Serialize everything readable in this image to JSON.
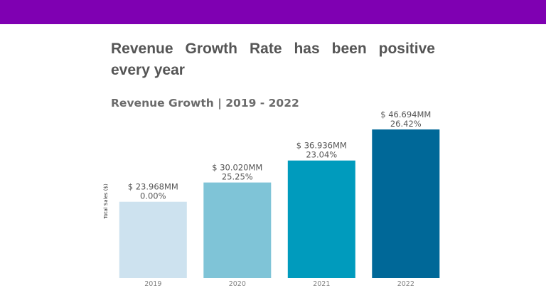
{
  "colors": {
    "top_bar": "#7f00b2",
    "text_dark": "#555555",
    "text_muted": "#808080",
    "bar_colors": [
      "#cde2ef",
      "#7fc4d7",
      "#009bbd",
      "#006898"
    ]
  },
  "headline": "Revenue Growth Rate has been positive every year",
  "chart_data": {
    "type": "bar",
    "title": "Revenue Growth | 2019 - 2022",
    "xlabel": "",
    "ylabel": "Total Sales ($)",
    "categories": [
      "2019",
      "2020",
      "2021",
      "2022"
    ],
    "values": [
      23.968,
      30.02,
      36.936,
      46.694
    ],
    "value_labels": [
      "$ 23.968MM",
      "$ 30.020MM",
      "$ 36.936MM",
      "$ 46.694MM"
    ],
    "growth_labels": [
      "0.00%",
      "25.25%",
      "23.04%",
      "26.42%"
    ],
    "ylim": [
      0,
      46.694
    ],
    "grid": false,
    "legend": "none"
  }
}
